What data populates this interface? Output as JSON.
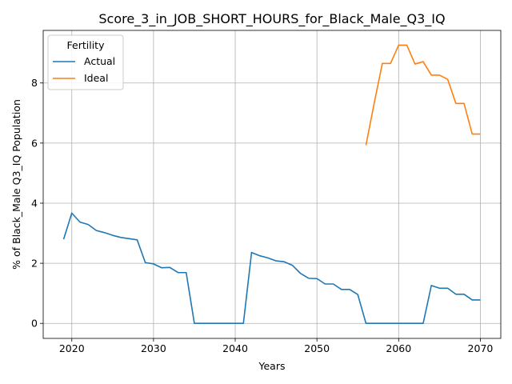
{
  "chart_data": {
    "type": "line",
    "title": "Score_3_in_JOB_SHORT_HOURS_for_Black_Male_Q3_IQ",
    "xlabel": "Years",
    "ylabel": "% of Black_Male Q3_IQ Population",
    "xlim": [
      2016.5,
      2072.5
    ],
    "ylim": [
      -0.5,
      9.75
    ],
    "xticks": [
      2020,
      2030,
      2040,
      2050,
      2060,
      2070
    ],
    "yticks": [
      0,
      2,
      4,
      6,
      8
    ],
    "grid": true,
    "legend": {
      "title": "Fertility",
      "placement": "top-left"
    },
    "series": [
      {
        "name": "Actual",
        "color": "#1f77b4",
        "x": [
          2019,
          2020,
          2021,
          2022,
          2023,
          2024,
          2025,
          2026,
          2027,
          2028,
          2029,
          2030,
          2031,
          2032,
          2033,
          2034,
          2035,
          2036,
          2037,
          2038,
          2039,
          2040,
          2041,
          2042,
          2043,
          2044,
          2045,
          2046,
          2047,
          2048,
          2049,
          2050,
          2051,
          2052,
          2053,
          2054,
          2055,
          2056,
          2057,
          2058,
          2059,
          2060,
          2061,
          2062,
          2063,
          2064,
          2065,
          2066,
          2067,
          2068,
          2069,
          2070
        ],
        "values": [
          2.8,
          3.67,
          3.37,
          3.29,
          3.09,
          3.02,
          2.93,
          2.86,
          2.82,
          2.78,
          2.02,
          1.98,
          1.85,
          1.86,
          1.69,
          1.69,
          0.0,
          0.0,
          0.0,
          0.0,
          0.0,
          0.0,
          0.0,
          2.36,
          2.25,
          2.18,
          2.08,
          2.05,
          1.93,
          1.66,
          1.5,
          1.49,
          1.31,
          1.31,
          1.13,
          1.13,
          0.96,
          0.0,
          0.0,
          0.0,
          0.0,
          0.0,
          0.0,
          0.0,
          0.0,
          1.26,
          1.17,
          1.17,
          0.97,
          0.97,
          0.78,
          0.78
        ]
      },
      {
        "name": "Ideal",
        "color": "#ff7f0e",
        "x": [
          2056,
          2057,
          2058,
          2059,
          2060,
          2061,
          2062,
          2063,
          2064,
          2065,
          2066,
          2067,
          2068,
          2069,
          2070
        ],
        "values": [
          5.93,
          7.32,
          8.65,
          8.65,
          9.26,
          9.26,
          8.63,
          8.71,
          8.26,
          8.26,
          8.12,
          7.32,
          7.32,
          6.3,
          6.3
        ]
      }
    ]
  }
}
